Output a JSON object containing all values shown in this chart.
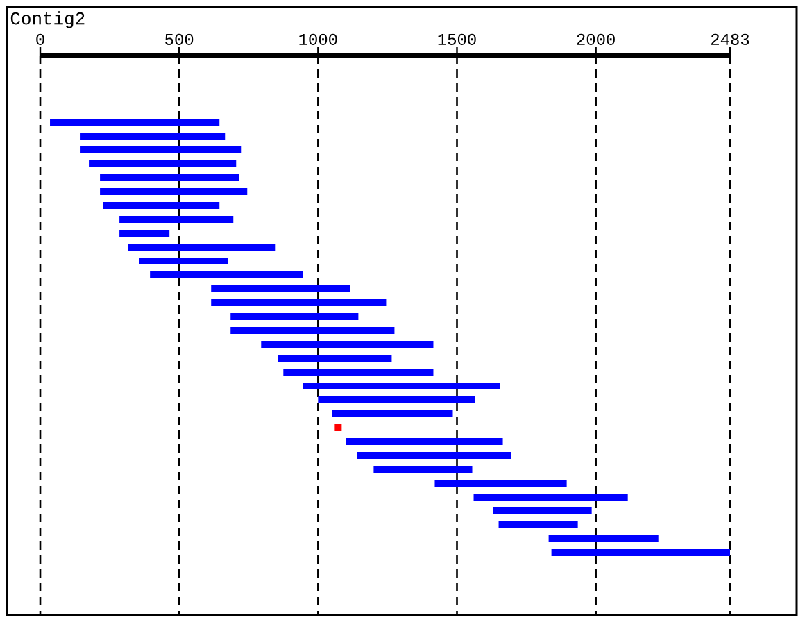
{
  "chart_data": {
    "type": "bar",
    "title": "Contig2",
    "orientation": "horizontal",
    "categories": [
      null,
      null,
      null,
      null,
      null,
      null,
      null,
      null,
      null,
      null,
      null,
      null,
      null,
      null,
      null,
      null,
      null,
      null,
      null,
      null,
      null,
      null,
      null,
      null,
      null,
      null,
      null,
      null,
      null,
      null,
      null,
      null
    ],
    "base": [
      35,
      145,
      145,
      175,
      215,
      215,
      225,
      285,
      285,
      315,
      355,
      395,
      615,
      615,
      685,
      685,
      795,
      855,
      875,
      945,
      1000,
      1050,
      1060,
      1100,
      1140,
      1200,
      1420,
      1560,
      1630,
      1650,
      1830,
      1840
    ],
    "values": [
      610,
      520,
      580,
      530,
      500,
      530,
      420,
      410,
      180,
      530,
      320,
      550,
      500,
      630,
      460,
      590,
      620,
      410,
      540,
      710,
      565,
      435,
      25,
      565,
      555,
      355,
      475,
      555,
      355,
      285,
      395,
      643
    ],
    "colors": [
      "#0000ff",
      "#0000ff",
      "#0000ff",
      "#0000ff",
      "#0000ff",
      "#0000ff",
      "#0000ff",
      "#0000ff",
      "#0000ff",
      "#0000ff",
      "#0000ff",
      "#0000ff",
      "#0000ff",
      "#0000ff",
      "#0000ff",
      "#0000ff",
      "#0000ff",
      "#0000ff",
      "#0000ff",
      "#0000ff",
      "#0000ff",
      "#0000ff",
      "#ff0000",
      "#0000ff",
      "#0000ff",
      "#0000ff",
      "#0000ff",
      "#0000ff",
      "#0000ff",
      "#0000ff",
      "#0000ff",
      "#0000ff"
    ],
    "xlim": [
      0,
      2483
    ],
    "xticks": [
      0,
      500,
      1000,
      1500,
      2000,
      2483
    ],
    "grid": "x",
    "tick_labels": "x"
  }
}
